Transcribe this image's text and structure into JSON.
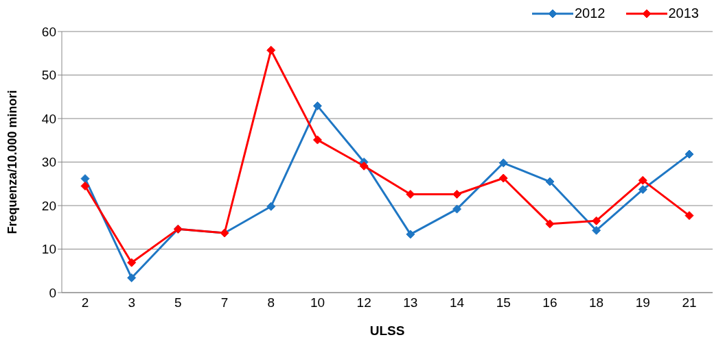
{
  "chart_data": {
    "type": "line",
    "xlabel": "ULSS",
    "ylabel": "Frequenza/10.000 minori",
    "categories": [
      "2",
      "3",
      "5",
      "7",
      "8",
      "10",
      "12",
      "13",
      "14",
      "15",
      "16",
      "18",
      "19",
      "21"
    ],
    "series": [
      {
        "name": "2012",
        "color": "#1f77c4",
        "values": [
          26.2,
          3.4,
          14.6,
          13.7,
          19.8,
          42.9,
          30,
          13.4,
          19.2,
          29.8,
          25.5,
          14.3,
          23.7,
          31.8
        ]
      },
      {
        "name": "2013",
        "color": "#ff0000",
        "values": [
          24.5,
          6.9,
          14.6,
          13.7,
          55.7,
          35.1,
          29.1,
          22.6,
          22.6,
          26.3,
          15.8,
          16.5,
          25.8,
          17.7
        ]
      }
    ],
    "ylim": [
      0,
      60
    ],
    "yticks": [
      0,
      10,
      20,
      30,
      40,
      50,
      60
    ],
    "grid": "y",
    "legend": "top right",
    "marker": "diamond",
    "line_style": "solid"
  }
}
